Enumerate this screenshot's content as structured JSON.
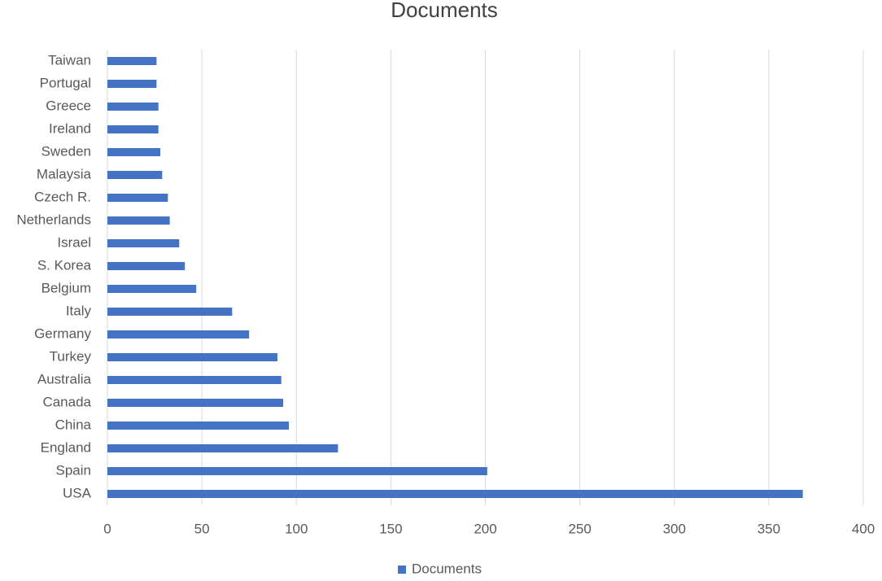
{
  "chart_data": {
    "type": "barh",
    "title": "Documents",
    "categories": [
      "USA",
      "Spain",
      "England",
      "China",
      "Canada",
      "Australia",
      "Turkey",
      "Germany",
      "Italy",
      "Belgium",
      "S. Korea",
      "Israel",
      "Netherlands",
      "Czech R.",
      "Malaysia",
      "Sweden",
      "Ireland",
      "Greece",
      "Portugal",
      "Taiwan"
    ],
    "series": [
      {
        "name": "Documents",
        "color": "#4472c4",
        "values": [
          368,
          201,
          122,
          96,
          93,
          92,
          90,
          75,
          66,
          47,
          41,
          38,
          33,
          32,
          29,
          28,
          27,
          27,
          26,
          26
        ]
      }
    ],
    "xlim": [
      0,
      400
    ],
    "xticks": [
      0,
      50,
      100,
      150,
      200,
      250,
      300,
      350,
      400
    ],
    "grid": true,
    "legend": "bottom"
  }
}
